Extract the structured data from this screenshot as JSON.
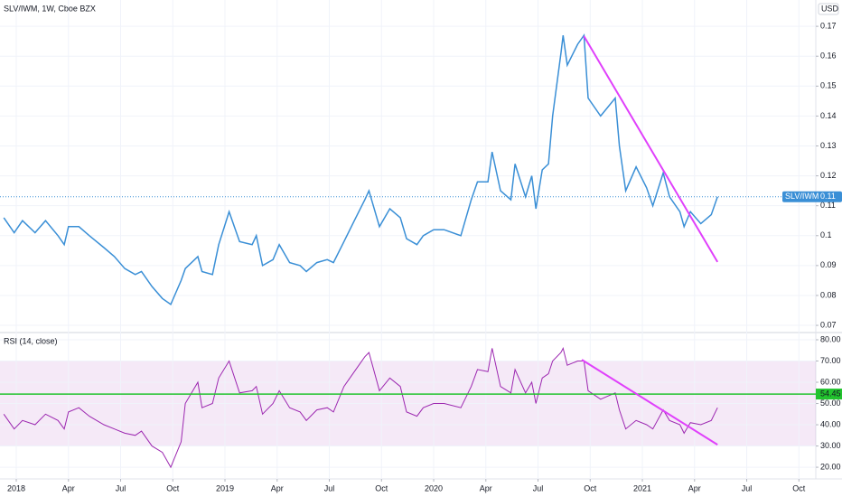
{
  "chart_data": [
    {
      "type": "line",
      "title": "SLV/IWM, 1W, Cboe BZX",
      "currency": "USD",
      "x": [
        2017.94,
        2017.99,
        2018.03,
        2018.09,
        2018.14,
        2018.2,
        2018.23,
        2018.25,
        2018.3,
        2018.35,
        2018.42,
        2018.47,
        2018.52,
        2018.57,
        2018.6,
        2018.65,
        2018.7,
        2018.74,
        2018.79,
        2018.81,
        2018.87,
        2018.89,
        2018.94,
        2018.97,
        2019.02,
        2019.07,
        2019.13,
        2019.15,
        2019.18,
        2019.23,
        2019.26,
        2019.31,
        2019.36,
        2019.39,
        2019.44,
        2019.49,
        2019.52,
        2019.57,
        2019.62,
        2019.67,
        2019.69,
        2019.74,
        2019.79,
        2019.84,
        2019.87,
        2019.92,
        2019.95,
        2020.0,
        2020.05,
        2020.13,
        2020.18,
        2020.21,
        2020.26,
        2020.28,
        2020.32,
        2020.37,
        2020.39,
        2020.44,
        2020.47,
        2020.49,
        2020.52,
        2020.55,
        2020.57,
        2020.61,
        2020.62,
        2020.64,
        2020.69,
        2020.72,
        2020.74,
        2020.8,
        2020.87,
        2020.89,
        2020.92,
        2020.97,
        2021.02,
        2021.05,
        2021.1,
        2021.13,
        2021.18,
        2021.2,
        2021.23,
        2021.28,
        2021.33,
        2021.36
      ],
      "series": [
        {
          "name": "SLV/IWM",
          "color": "#3a8fd6",
          "values": [
            0.106,
            0.101,
            0.105,
            0.101,
            0.105,
            0.1,
            0.097,
            0.103,
            0.103,
            0.1,
            0.096,
            0.093,
            0.089,
            0.087,
            0.088,
            0.083,
            0.079,
            0.077,
            0.085,
            0.089,
            0.093,
            0.088,
            0.087,
            0.097,
            0.108,
            0.098,
            0.097,
            0.1,
            0.09,
            0.092,
            0.097,
            0.091,
            0.09,
            0.088,
            0.091,
            0.092,
            0.091,
            0.098,
            0.105,
            0.112,
            0.115,
            0.103,
            0.109,
            0.106,
            0.099,
            0.097,
            0.1,
            0.102,
            0.102,
            0.1,
            0.112,
            0.118,
            0.118,
            0.128,
            0.115,
            0.112,
            0.124,
            0.113,
            0.12,
            0.109,
            0.122,
            0.124,
            0.14,
            0.161,
            0.167,
            0.157,
            0.164,
            0.167,
            0.146,
            0.14,
            0.146,
            0.13,
            0.115,
            0.123,
            0.116,
            0.11,
            0.121,
            0.113,
            0.108,
            0.103,
            0.108,
            0.104,
            0.107,
            0.113
          ]
        }
      ],
      "last_value": {
        "value": 0.113,
        "label": "0.11"
      },
      "trendline": {
        "x": [
          2020.72,
          2021.36
        ],
        "y": [
          0.1667,
          0.0912
        ],
        "color": "#e040fb"
      },
      "xlim": [
        2017.922,
        2021.831
      ],
      "ylim": [
        0.0676,
        0.1788
      ],
      "yticks": [
        0.07,
        0.08,
        0.09,
        0.1,
        0.11,
        0.12,
        0.13,
        0.14,
        0.15,
        0.16,
        0.17
      ],
      "grid": true
    },
    {
      "type": "line",
      "x": [
        2017.94,
        2017.99,
        2018.03,
        2018.09,
        2018.14,
        2018.2,
        2018.23,
        2018.25,
        2018.3,
        2018.35,
        2018.42,
        2018.47,
        2018.52,
        2018.57,
        2018.6,
        2018.65,
        2018.7,
        2018.74,
        2018.79,
        2018.81,
        2018.87,
        2018.89,
        2018.94,
        2018.97,
        2019.02,
        2019.07,
        2019.13,
        2019.15,
        2019.18,
        2019.23,
        2019.26,
        2019.31,
        2019.36,
        2019.39,
        2019.44,
        2019.49,
        2019.52,
        2019.57,
        2019.62,
        2019.67,
        2019.69,
        2019.74,
        2019.79,
        2019.84,
        2019.87,
        2019.92,
        2019.95,
        2020.0,
        2020.05,
        2020.13,
        2020.18,
        2020.21,
        2020.26,
        2020.28,
        2020.32,
        2020.37,
        2020.39,
        2020.44,
        2020.47,
        2020.49,
        2020.52,
        2020.55,
        2020.57,
        2020.61,
        2020.62,
        2020.64,
        2020.69,
        2020.72,
        2020.74,
        2020.8,
        2020.87,
        2020.89,
        2020.92,
        2020.97,
        2021.02,
        2021.05,
        2021.1,
        2021.13,
        2021.18,
        2021.2,
        2021.23,
        2021.28,
        2021.33,
        2021.36
      ],
      "series": [
        {
          "name": "RSI (14, close)",
          "color": "#9c27b0",
          "values": [
            45,
            38,
            42,
            40,
            45,
            42,
            38,
            46,
            48,
            44,
            40,
            38,
            36,
            35,
            37,
            30,
            27,
            20,
            32,
            50,
            60,
            48,
            50,
            62,
            70,
            55,
            56,
            58,
            45,
            50,
            56,
            48,
            46,
            42,
            47,
            48,
            46,
            58,
            65,
            72,
            74,
            56,
            62,
            58,
            46,
            44,
            48,
            50,
            50,
            48,
            58,
            66,
            65,
            76,
            58,
            55,
            66,
            55,
            60,
            50,
            62,
            64,
            70,
            74,
            76,
            68,
            70,
            70,
            56,
            52,
            55,
            47,
            38,
            42,
            40,
            38,
            47,
            42,
            40,
            36,
            41,
            40,
            42,
            48
          ]
        }
      ],
      "band": [
        30,
        70
      ],
      "band_color": "#9c27b0",
      "level": {
        "value": 54.45,
        "color": "#22c32e"
      },
      "trendline": {
        "x": [
          2020.71,
          2021.36
        ],
        "y": [
          70.6,
          30.6
        ],
        "color": "#e040fb"
      },
      "xlim": [
        2017.922,
        2021.831
      ],
      "ylim": [
        14.5,
        83.4
      ],
      "yticks": [
        {
          "value": 20,
          "label": "20.00"
        },
        {
          "value": 30,
          "label": "30.00"
        },
        {
          "value": 40,
          "label": "40.00"
        },
        {
          "value": 50,
          "label": "50.00"
        },
        {
          "value": 60,
          "label": "60.00"
        },
        {
          "value": 70,
          "label": "70.00"
        },
        {
          "value": 80,
          "label": "80.00"
        }
      ],
      "xticks": [
        {
          "value": 2018,
          "label": "2018"
        },
        {
          "value": 2018.25,
          "label": "Apr"
        },
        {
          "value": 2018.5,
          "label": "Jul"
        },
        {
          "value": 2018.75,
          "label": "Oct"
        },
        {
          "value": 2019,
          "label": "2019"
        },
        {
          "value": 2019.25,
          "label": "Apr"
        },
        {
          "value": 2019.5,
          "label": "Jul"
        },
        {
          "value": 2019.75,
          "label": "Oct"
        },
        {
          "value": 2020,
          "label": "2020"
        },
        {
          "value": 2020.25,
          "label": "Apr"
        },
        {
          "value": 2020.5,
          "label": "Jul"
        },
        {
          "value": 2020.75,
          "label": "Oct"
        },
        {
          "value": 2021,
          "label": "2021"
        },
        {
          "value": 2021.25,
          "label": "Apr"
        },
        {
          "value": 2021.5,
          "label": "Jul"
        },
        {
          "value": 2021.75,
          "label": "Oct"
        }
      ],
      "grid": true
    }
  ]
}
